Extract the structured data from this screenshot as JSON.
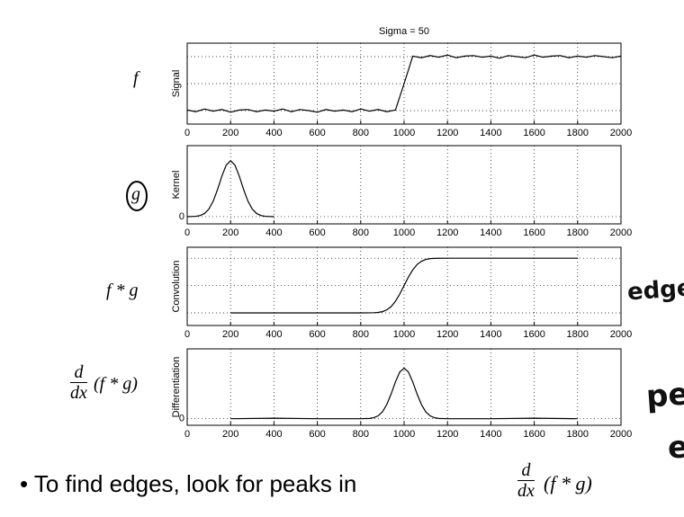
{
  "chart_data": [
    {
      "type": "line",
      "title": "Sigma = 50",
      "ylabel": "Signal",
      "color": "#000000",
      "grid": true,
      "xlim": [
        0,
        2000
      ],
      "xticks": [
        0,
        200,
        400,
        600,
        800,
        1000,
        1200,
        1400,
        1600,
        1800,
        2000
      ],
      "ylim": [
        -0.25,
        1.25
      ],
      "ygrid": [
        0,
        0.5,
        1
      ],
      "x": [
        0,
        40,
        80,
        120,
        160,
        200,
        240,
        280,
        320,
        360,
        400,
        440,
        480,
        520,
        560,
        600,
        640,
        680,
        720,
        760,
        800,
        840,
        880,
        920,
        960,
        1000,
        1040,
        1080,
        1120,
        1160,
        1200,
        1240,
        1280,
        1320,
        1360,
        1400,
        1440,
        1480,
        1520,
        1560,
        1600,
        1640,
        1680,
        1720,
        1760,
        1800,
        1840,
        1880,
        1920,
        1960,
        2000
      ],
      "values": [
        0.01,
        -0.02,
        0.03,
        -0.01,
        0.02,
        -0.03,
        0.01,
        0.02,
        -0.02,
        0.01,
        -0.01,
        0.03,
        -0.02,
        0.02,
        0,
        -0.03,
        0.02,
        -0.01,
        0.01,
        -0.02,
        0.03,
        -0.01,
        0.02,
        -0.02,
        0.01,
        0.5,
        1.01,
        0.98,
        1.02,
        0.99,
        1.03,
        0.98,
        1.01,
        1.02,
        0.99,
        1.01,
        0.97,
        1.02,
        1.0,
        0.98,
        1.03,
        0.99,
        1.01,
        1.02,
        0.98,
        1.01,
        0.99,
        1.02,
        1.0,
        0.98,
        1.01
      ]
    },
    {
      "type": "line",
      "ylabel": "Kernel",
      "color": "#000000",
      "grid": true,
      "xlim": [
        0,
        2000
      ],
      "xticks": [
        0,
        200,
        400,
        600,
        800,
        1000,
        1200,
        1400,
        1600,
        1800,
        2000
      ],
      "ylim": [
        -0.13,
        1.27
      ],
      "yticks": [
        0
      ],
      "x": [
        0,
        20,
        40,
        60,
        80,
        100,
        120,
        140,
        160,
        180,
        200,
        220,
        240,
        260,
        280,
        300,
        320,
        340,
        360,
        380,
        400
      ],
      "values": [
        0.0003,
        0.0015,
        0.006,
        0.02,
        0.056,
        0.135,
        0.278,
        0.487,
        0.726,
        0.923,
        1,
        0.923,
        0.726,
        0.487,
        0.278,
        0.135,
        0.056,
        0.02,
        0.006,
        0.0015,
        0.0003
      ]
    },
    {
      "type": "line",
      "ylabel": "Convolution",
      "color": "#000000",
      "grid": true,
      "xlim": [
        0,
        2000
      ],
      "xticks": [
        0,
        200,
        400,
        600,
        800,
        1000,
        1200,
        1400,
        1600,
        1800,
        2000
      ],
      "ylim": [
        -0.23,
        1.2
      ],
      "ygrid": [
        0,
        0.5,
        1
      ],
      "x": [
        200,
        400,
        600,
        800,
        840,
        860,
        880,
        900,
        920,
        940,
        960,
        980,
        1000,
        1020,
        1040,
        1060,
        1080,
        1100,
        1120,
        1140,
        1160,
        1200,
        1400,
        1600,
        1800
      ],
      "values": [
        0,
        0,
        0,
        0,
        0.001,
        0.003,
        0.008,
        0.023,
        0.055,
        0.115,
        0.212,
        0.345,
        0.5,
        0.655,
        0.788,
        0.885,
        0.945,
        0.977,
        0.992,
        0.997,
        0.999,
        1,
        1,
        1,
        1
      ]
    },
    {
      "type": "line",
      "ylabel": "Differentiation",
      "color": "#000000",
      "grid": true,
      "xlim": [
        0,
        2000
      ],
      "xticks": [
        0,
        200,
        400,
        600,
        800,
        1000,
        1200,
        1400,
        1600,
        1800,
        2000
      ],
      "ylim": [
        -0.13,
        1.38
      ],
      "yticks": [
        0
      ],
      "x": [
        200,
        400,
        600,
        800,
        840,
        860,
        880,
        900,
        920,
        940,
        960,
        980,
        1000,
        1020,
        1040,
        1060,
        1080,
        1100,
        1120,
        1140,
        1160,
        1200,
        1400,
        1600,
        1800
      ],
      "values": [
        0,
        0.01,
        0,
        0,
        0.006,
        0.02,
        0.056,
        0.135,
        0.278,
        0.487,
        0.726,
        0.923,
        1,
        0.923,
        0.726,
        0.487,
        0.278,
        0.135,
        0.056,
        0.02,
        0.006,
        0,
        0,
        0.01,
        0
      ]
    }
  ],
  "slide": {
    "labels": {
      "f": "f",
      "g": "g",
      "fg": "f * g",
      "d": "d",
      "dx": "dx",
      "dfg": "(f * g)"
    },
    "bullet": "To find edges, look for peaks in",
    "bullet_formula": {
      "d": "d",
      "dx": "dx",
      "rest": "(f * g)"
    },
    "handwriting": [
      "edge",
      "pe",
      "e"
    ]
  }
}
